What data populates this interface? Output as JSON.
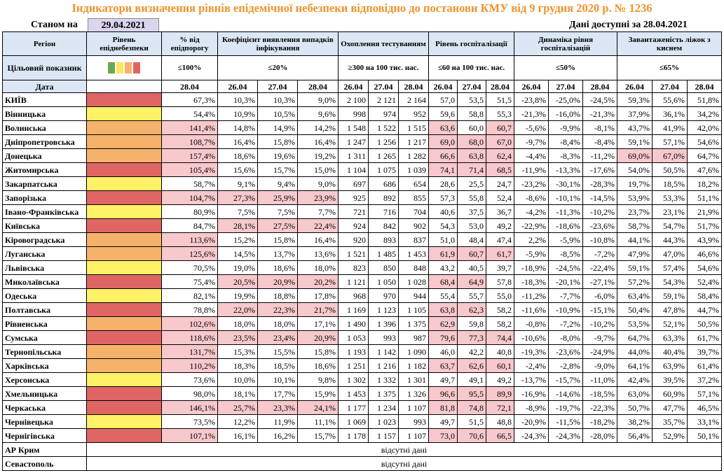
{
  "title": "Індикатори визначення рівнів епідемічної небезпеки відповідно до постанови КМУ від 9 грудня 2020 р. № 1236",
  "as_of_label": "Станом на",
  "as_of_date": "29.04.2021",
  "data_available": "Дані доступні за  28.04.2021",
  "headers": {
    "region": "Регіон",
    "level": "Рівень епіднебезпеки",
    "pct_threshold": "% від епідпорогу",
    "detection": "Коефіцієнт виявлення випадків інфікування",
    "testing": "Охоплення тестуванням",
    "hosp": "Рівень госпіталізації",
    "dynamics": "Динаміка рівня госпіталізацій",
    "oxygen": "Завантаженість ліжок з киснем"
  },
  "target": {
    "label": "Цільовий показник",
    "pct": "≤100%",
    "detection": "≤20%",
    "testing": "≥300 на 100 тис. нас.",
    "hosp": "≤60 на 100 тис. нас.",
    "dynamics": "≤50%",
    "oxygen": "≤65%",
    "swatch_colors": [
      "#6aa84f",
      "#ffe45c",
      "#f6b26b",
      "#e06666"
    ]
  },
  "dates_row": {
    "label": "Дата",
    "pct": "28.04",
    "group": [
      "26.04",
      "27.04",
      "28.04"
    ]
  },
  "level_colors": {
    "red": "#e06666",
    "orange": "#f6b26b",
    "yellow": "#fff266",
    "green": "#6aa84f"
  },
  "rows": [
    {
      "region": "КИЇВ",
      "level": "red",
      "pct": "67,3%",
      "det": [
        "10,3%",
        "10,3%",
        "9,0%"
      ],
      "test": [
        "2 100",
        "2 121",
        "2 164"
      ],
      "hosp": [
        "57,0",
        "53,5",
        "51,5"
      ],
      "dyn": [
        "-23,8%",
        "-25,0%",
        "-24,5%"
      ],
      "oxy": [
        "59,3%",
        "55,6%",
        "51,8%"
      ]
    },
    {
      "region": "Вінницька",
      "level": "yellow",
      "pct": "54,4%",
      "det": [
        "10,9%",
        "10,5%",
        "9,6%"
      ],
      "test": [
        "998",
        "974",
        "952"
      ],
      "hosp": [
        "59,6",
        "58,8",
        "55,3"
      ],
      "dyn": [
        "-21,3%",
        "-16,0%",
        "-21,3%"
      ],
      "oxy": [
        "37,9%",
        "36,1%",
        "34,2%"
      ]
    },
    {
      "region": "Волинська",
      "level": "orange",
      "pct": "141,4%",
      "det": [
        "14,8%",
        "14,9%",
        "14,2%"
      ],
      "test": [
        "1 548",
        "1 522",
        "1 515"
      ],
      "hosp": [
        "63,6",
        "60,0",
        "60,7"
      ],
      "dyn": [
        "-5,6%",
        "-9,9%",
        "-8,1%"
      ],
      "oxy": [
        "43,7%",
        "41,9%",
        "42,0%"
      ]
    },
    {
      "region": "Дніпропетровська",
      "level": "orange",
      "pct": "108,7%",
      "det": [
        "16,4%",
        "15,8%",
        "16,4%"
      ],
      "test": [
        "1 247",
        "1 256",
        "1 217"
      ],
      "hosp": [
        "69,0",
        "68,0",
        "67,0"
      ],
      "dyn": [
        "-9,7%",
        "-8,4%",
        "-8,4%"
      ],
      "oxy": [
        "59,1%",
        "57,1%",
        "54,6%"
      ]
    },
    {
      "region": "Донецька",
      "level": "orange",
      "pct": "157,4%",
      "det": [
        "18,6%",
        "19,6%",
        "19,2%"
      ],
      "test": [
        "1 311",
        "1 265",
        "1 282"
      ],
      "hosp": [
        "66,6",
        "63,8",
        "62,4"
      ],
      "dyn": [
        "-4,4%",
        "-8,3%",
        "-11,2%"
      ],
      "oxy": [
        "69,0%",
        "67,0%",
        "64,7%"
      ]
    },
    {
      "region": "Житомирська",
      "level": "red",
      "pct": "105,4%",
      "det": [
        "15,6%",
        "15,7%",
        "15,0%"
      ],
      "test": [
        "1 104",
        "1 075",
        "1 039"
      ],
      "hosp": [
        "74,1",
        "71,4",
        "68,5"
      ],
      "dyn": [
        "-11,9%",
        "-13,3%",
        "-17,6%"
      ],
      "oxy": [
        "54,0%",
        "50,5%",
        "47,6%"
      ]
    },
    {
      "region": "Закарпатська",
      "level": "yellow",
      "pct": "58,7%",
      "det": [
        "9,1%",
        "9,4%",
        "9,0%"
      ],
      "test": [
        "697",
        "686",
        "654"
      ],
      "hosp": [
        "28,6",
        "25,5",
        "24,7"
      ],
      "dyn": [
        "-23,2%",
        "-30,1%",
        "-28,3%"
      ],
      "oxy": [
        "19,7%",
        "18,5%",
        "18,2%"
      ]
    },
    {
      "region": "Запорізька",
      "level": "red",
      "pct": "104,7%",
      "det": [
        "27,3%",
        "25,9%",
        "23,9%"
      ],
      "test": [
        "925",
        "892",
        "855"
      ],
      "hosp": [
        "57,3",
        "55,8",
        "52,4"
      ],
      "dyn": [
        "-8,6%",
        "-10,1%",
        "-14,5%"
      ],
      "oxy": [
        "53,9%",
        "53,3%",
        "51,1%"
      ]
    },
    {
      "region": "Івано-Франківська",
      "level": "yellow",
      "pct": "80,9%",
      "det": [
        "7,5%",
        "7,5%",
        "7,7%"
      ],
      "test": [
        "721",
        "716",
        "704"
      ],
      "hosp": [
        "40,6",
        "37,5",
        "36,7"
      ],
      "dyn": [
        "-4,2%",
        "-11,3%",
        "-10,2%"
      ],
      "oxy": [
        "23,7%",
        "23,1%",
        "21,9%"
      ]
    },
    {
      "region": "Київська",
      "level": "red",
      "pct": "84,7%",
      "det": [
        "28,1%",
        "27,5%",
        "22,4%"
      ],
      "test": [
        "924",
        "842",
        "902"
      ],
      "hosp": [
        "54,3",
        "53,0",
        "49,2"
      ],
      "dyn": [
        "-22,9%",
        "-18,6%",
        "-23,6%"
      ],
      "oxy": [
        "58,7%",
        "54,7%",
        "51,7%"
      ]
    },
    {
      "region": "Кіровоградська",
      "level": "orange",
      "pct": "113,6%",
      "det": [
        "15,2%",
        "15,8%",
        "16,4%"
      ],
      "test": [
        "920",
        "893",
        "837"
      ],
      "hosp": [
        "51,0",
        "48,4",
        "47,4"
      ],
      "dyn": [
        "2,2%",
        "-5,9%",
        "-10,8%"
      ],
      "oxy": [
        "44,1%",
        "44,3%",
        "43,9%"
      ]
    },
    {
      "region": "Луганська",
      "level": "orange",
      "pct": "125,6%",
      "det": [
        "14,5%",
        "13,7%",
        "13,6%"
      ],
      "test": [
        "1 521",
        "1 485",
        "1 453"
      ],
      "hosp": [
        "61,9",
        "60,7",
        "61,7"
      ],
      "dyn": [
        "-5,9%",
        "-8,5%",
        "-7,2%"
      ],
      "oxy": [
        "47,9%",
        "47,0%",
        "46,6%"
      ]
    },
    {
      "region": "Львівська",
      "level": "yellow",
      "pct": "70,5%",
      "det": [
        "19,0%",
        "18,6%",
        "18,0%"
      ],
      "test": [
        "823",
        "850",
        "848"
      ],
      "hosp": [
        "43,2",
        "40,5",
        "39,7"
      ],
      "dyn": [
        "-18,9%",
        "-24,5%",
        "-22,4%"
      ],
      "oxy": [
        "59,1%",
        "57,4%",
        "54,6%"
      ]
    },
    {
      "region": "Миколаївська",
      "level": "red",
      "pct": "75,4%",
      "det": [
        "20,5%",
        "20,9%",
        "20,2%"
      ],
      "test": [
        "1 121",
        "1 050",
        "1 028"
      ],
      "hosp": [
        "68,4",
        "64,9",
        "57,8"
      ],
      "dyn": [
        "-18,3%",
        "-20,1%",
        "-27,1%"
      ],
      "oxy": [
        "57,2%",
        "54,3%",
        "52,4%"
      ]
    },
    {
      "region": "Одеська",
      "level": "yellow",
      "pct": "82,1%",
      "det": [
        "19,9%",
        "18,8%",
        "17,8%"
      ],
      "test": [
        "968",
        "970",
        "944"
      ],
      "hosp": [
        "55,4",
        "55,7",
        "55,0"
      ],
      "dyn": [
        "-11,2%",
        "-7,7%",
        "-6,0%"
      ],
      "oxy": [
        "63,4%",
        "59,1%",
        "58,4%"
      ]
    },
    {
      "region": "Полтавська",
      "level": "red",
      "pct": "78,8%",
      "det": [
        "22,0%",
        "22,3%",
        "21,7%"
      ],
      "test": [
        "1 169",
        "1 123",
        "1 105"
      ],
      "hosp": [
        "63,8",
        "62,3",
        "58,2"
      ],
      "dyn": [
        "-11,6%",
        "-10,9%",
        "-15,1%"
      ],
      "oxy": [
        "50,4%",
        "47,8%",
        "44,7%"
      ]
    },
    {
      "region": "Рівненська",
      "level": "orange",
      "pct": "102,6%",
      "det": [
        "18,0%",
        "18,0%",
        "17,1%"
      ],
      "test": [
        "1 490",
        "1 396",
        "1 375"
      ],
      "hosp": [
        "62,9",
        "59,8",
        "58,2"
      ],
      "dyn": [
        "-0,8%",
        "-7,2%",
        "-10,2%"
      ],
      "oxy": [
        "53,5%",
        "52,1%",
        "50,5%"
      ]
    },
    {
      "region": "Сумська",
      "level": "red",
      "pct": "118,6%",
      "det": [
        "23,5%",
        "23,4%",
        "20,9%"
      ],
      "test": [
        "1 053",
        "993",
        "987"
      ],
      "hosp": [
        "79,6",
        "77,3",
        "74,4"
      ],
      "dyn": [
        "-10,6%",
        "-8,0%",
        "-9,7%"
      ],
      "oxy": [
        "64,7%",
        "63,3%",
        "61,7%"
      ]
    },
    {
      "region": "Тернопільська",
      "level": "orange",
      "pct": "131,7%",
      "det": [
        "15,3%",
        "15,5%",
        "15,8%"
      ],
      "test": [
        "1 193",
        "1 142",
        "1 090"
      ],
      "hosp": [
        "46,0",
        "42,2",
        "40,8"
      ],
      "dyn": [
        "-19,3%",
        "-23,6%",
        "-24,9%"
      ],
      "oxy": [
        "44,0%",
        "40,4%",
        "39,7%"
      ]
    },
    {
      "region": "Харківська",
      "level": "orange",
      "pct": "110,2%",
      "det": [
        "18,3%",
        "18,5%",
        "18,6%"
      ],
      "test": [
        "1 251",
        "1 216",
        "1 182"
      ],
      "hosp": [
        "63,7",
        "62,6",
        "60,1"
      ],
      "dyn": [
        "-2,4%",
        "-2,8%",
        "-9,0%"
      ],
      "oxy": [
        "64,1%",
        "63,9%",
        "61,4%"
      ]
    },
    {
      "region": "Херсонська",
      "level": "yellow",
      "pct": "73,6%",
      "det": [
        "10,0%",
        "10,1%",
        "9,8%"
      ],
      "test": [
        "1 302",
        "1 332",
        "1 301"
      ],
      "hosp": [
        "49,7",
        "49,1",
        "49,2"
      ],
      "dyn": [
        "-13,7%",
        "-15,7%",
        "-11,0%"
      ],
      "oxy": [
        "42,4%",
        "39,5%",
        "37,2%"
      ]
    },
    {
      "region": "Хмельницька",
      "level": "red",
      "pct": "98,0%",
      "det": [
        "18,1%",
        "17,7%",
        "15,9%"
      ],
      "test": [
        "1 453",
        "1 375",
        "1 326"
      ],
      "hosp": [
        "96,6",
        "95,5",
        "89,9"
      ],
      "dyn": [
        "-16,9%",
        "-14,6%",
        "-18,5%"
      ],
      "oxy": [
        "63,0%",
        "60,9%",
        "57,1%"
      ]
    },
    {
      "region": "Черкаська",
      "level": "red",
      "pct": "146,1%",
      "det": [
        "25,7%",
        "23,3%",
        "24,1%"
      ],
      "test": [
        "1 177",
        "1 234",
        "1 107"
      ],
      "hosp": [
        "81,8",
        "74,8",
        "72,1"
      ],
      "dyn": [
        "-8,9%",
        "-19,7%",
        "-22,3%"
      ],
      "oxy": [
        "50,7%",
        "47,7%",
        "46,5%"
      ]
    },
    {
      "region": "Чернівецька",
      "level": "yellow",
      "pct": "73,5%",
      "det": [
        "12,2%",
        "11,9%",
        "11,1%"
      ],
      "test": [
        "1 069",
        "1 023",
        "993"
      ],
      "hosp": [
        "49,7",
        "51,5",
        "48,8"
      ],
      "dyn": [
        "-20,9%",
        "-11,5%",
        "-18,2%"
      ],
      "oxy": [
        "38,2%",
        "35,7%",
        "33,1%"
      ]
    },
    {
      "region": "Чернігівська",
      "level": "red",
      "pct": "107,1%",
      "det": [
        "16,1%",
        "16,2%",
        "15,7%"
      ],
      "test": [
        "1 178",
        "1 157",
        "1 107"
      ],
      "hosp": [
        "73,0",
        "70,6",
        "66,5"
      ],
      "dyn": [
        "-24,3%",
        "-24,3%",
        "-28,0%"
      ],
      "oxy": [
        "56,4%",
        "52,9%",
        "50,1%"
      ]
    }
  ],
  "missing_rows": [
    {
      "region": "АР Крим",
      "note": "відсутні дані"
    },
    {
      "region": "Севастополь",
      "note": "відсутні дані"
    }
  ],
  "highlight_color": "#f7c9cc"
}
